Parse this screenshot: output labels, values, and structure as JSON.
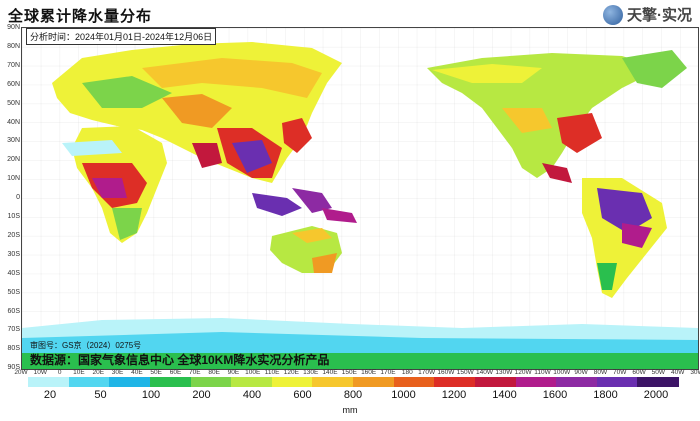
{
  "header": {
    "title": "全球累计降水量分布",
    "brand": "天擎·实况",
    "period": "分析时间：2024年01月01日-2024年12月06日"
  },
  "map": {
    "lat_labels": [
      "90N",
      "80N",
      "70N",
      "60N",
      "50N",
      "40N",
      "30N",
      "20N",
      "10N",
      "0",
      "10S",
      "20S",
      "30S",
      "40S",
      "50S",
      "60S",
      "70S",
      "80S",
      "90S"
    ],
    "lon_labels": [
      "20W",
      "10W",
      "0",
      "10E",
      "20E",
      "30E",
      "40E",
      "50E",
      "60E",
      "70E",
      "80E",
      "90E",
      "100E",
      "110E",
      "120E",
      "130E",
      "140E",
      "150E",
      "160E",
      "170E",
      "180",
      "170W",
      "160W",
      "150W",
      "140W",
      "130W",
      "120W",
      "110W",
      "100W",
      "90W",
      "80W",
      "70W",
      "60W",
      "50W",
      "40W",
      "30W"
    ],
    "review_number": "审图号：GS京（2024）0275号",
    "source": "数据源：国家气象信息中心  全球10KM降水实况分析产品"
  },
  "legend": {
    "unit": "mm",
    "ticks": [
      "20",
      "50",
      "100",
      "200",
      "400",
      "600",
      "800",
      "1000",
      "1200",
      "1400",
      "1600",
      "1800",
      "2000"
    ],
    "colors": [
      "#b9f3f9",
      "#52d6f0",
      "#1fb5e6",
      "#2abf4e",
      "#7cd44a",
      "#b7e842",
      "#eef238",
      "#f6c72d",
      "#f09a23",
      "#e8601d",
      "#dd2e26",
      "#c2183d",
      "#b01c8c",
      "#8d2aa3",
      "#6a2fb0",
      "#3c1466"
    ]
  }
}
